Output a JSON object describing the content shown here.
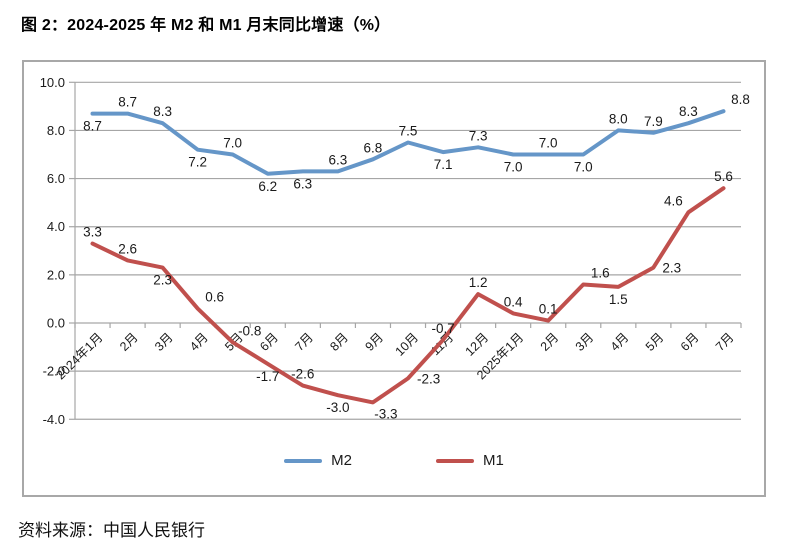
{
  "figure": {
    "title": "图 2：2024-2025 年 M2 和 M1 月末同比增速（%）",
    "source": "资料来源：中国人民银行"
  },
  "chart_data": {
    "type": "line",
    "title": "图 2：2024-2025 年 M2 和 M1 月末同比增速（%）",
    "xlabel": "",
    "ylabel": "",
    "categories": [
      "2024年1月",
      "2月",
      "3月",
      "4月",
      "5月",
      "6月",
      "7月",
      "8月",
      "9月",
      "10月",
      "11月",
      "12月",
      "2025年1月",
      "2月",
      "3月",
      "4月",
      "5月",
      "6月",
      "7月"
    ],
    "series": [
      {
        "name": "M2",
        "color": "#6596C8",
        "values": [
          8.7,
          8.7,
          8.3,
          7.2,
          7.0,
          6.2,
          6.3,
          6.3,
          6.8,
          7.5,
          7.1,
          7.3,
          7.0,
          7.0,
          7.0,
          8.0,
          7.9,
          8.3,
          8.8
        ],
        "label_sides": [
          "below",
          "above",
          "above",
          "below",
          "above",
          "below",
          "below",
          "above",
          "above",
          "above",
          "below",
          "above",
          "below",
          "above",
          "below",
          "above",
          "above",
          "above",
          "above-right"
        ]
      },
      {
        "name": "M1",
        "color": "#C0504D",
        "values": [
          3.3,
          2.6,
          2.3,
          0.6,
          -0.8,
          -1.7,
          -2.6,
          -3.0,
          -3.3,
          -2.3,
          -0.7,
          1.2,
          0.4,
          0.1,
          1.6,
          1.5,
          2.3,
          4.6,
          5.6
        ],
        "label_sides": [
          "above",
          "above",
          "below",
          "above-right",
          "above-right",
          "below",
          "above",
          "below",
          "below-right",
          "right",
          "above",
          "above",
          "above",
          "above",
          "above-right",
          "below",
          "right",
          "above-left",
          "above"
        ]
      }
    ],
    "ylim": [
      -4,
      10
    ],
    "yticks": [
      10,
      8,
      6,
      4,
      2,
      0,
      -2,
      -4
    ],
    "ytick_labels": [
      "10.0",
      "8.0",
      "6.0",
      "4.0",
      "2.0",
      "0.0",
      "-2.0",
      "-4.0"
    ],
    "grid": true,
    "legend_position": "bottom-center",
    "value_labels": true,
    "colors": {
      "grid": "#a6a6a6",
      "axis": "#a6a6a6",
      "tick_text": "#1a1a1a",
      "data_label_text": "#1a1a1a"
    }
  }
}
